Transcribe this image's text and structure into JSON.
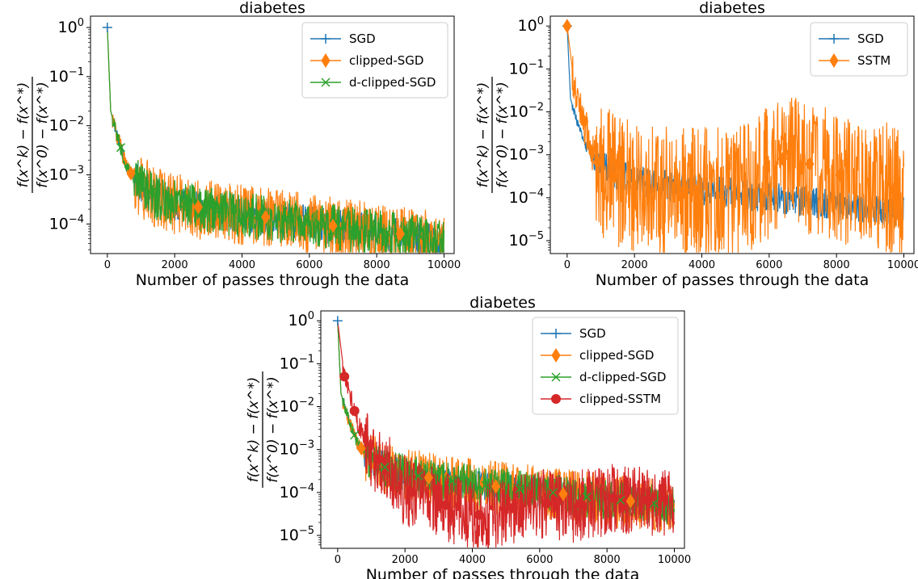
{
  "colors": {
    "SGD": "#1f77b4",
    "clipped-SGD": "#ff7f0e",
    "d-clipped-SGD": "#2ca02c",
    "SSTM": "#ff7f0e",
    "clipped-SSTM": "#d62728"
  },
  "common": {
    "xlabel": "Number of passes through the data",
    "ylabel_num": "f(x^k) − f(x^*)",
    "ylabel_den": "f(x^0) − f(x^*)",
    "xticks": [
      "0",
      "2000",
      "4000",
      "6000",
      "8000",
      "10000"
    ],
    "ytick_base": "10"
  },
  "chart_data": [
    {
      "type": "line",
      "title": "diabetes",
      "xlabel": "Number of passes through the data",
      "yscale": "log",
      "xlim": [
        -500,
        10300
      ],
      "ylim": [
        2.5e-05,
        1.7
      ],
      "yticks": [
        1,
        0.1,
        0.01,
        0.001,
        0.0001
      ],
      "xticks": [
        0,
        2000,
        4000,
        6000,
        8000,
        10000
      ],
      "legend": "top-right",
      "series": [
        {
          "name": "SGD",
          "color": "#1f77b4",
          "marker": "plus",
          "x": [
            0,
            100,
            300,
            600,
            1000,
            1500,
            2000,
            3000,
            4000,
            5000,
            6000,
            7000,
            8000,
            9000,
            10000
          ],
          "y": [
            1.0,
            0.02,
            0.006,
            0.0013,
            0.0006,
            0.00035,
            0.00028,
            0.0002,
            0.00016,
            0.00013,
            0.00011,
            8.5e-05,
            7e-05,
            6e-05,
            4e-05
          ],
          "markers_x": [
            0
          ]
        },
        {
          "name": "clipped-SGD",
          "color": "#ff7f0e",
          "marker": "diamond",
          "x": [
            0,
            100,
            300,
            600,
            1000,
            1500,
            2000,
            3000,
            4000,
            5000,
            6000,
            7000,
            8000,
            9000,
            10000
          ],
          "y": [
            1.0,
            0.02,
            0.006,
            0.0013,
            0.0006,
            0.00035,
            0.00028,
            0.0002,
            0.00016,
            0.00013,
            0.00011,
            8.5e-05,
            7e-05,
            6e-05,
            4e-05
          ],
          "markers_x": [
            700,
            2700,
            4700,
            6700,
            8700
          ]
        },
        {
          "name": "d-clipped-SGD",
          "color": "#2ca02c",
          "marker": "x",
          "x": [
            0,
            100,
            300,
            600,
            1000,
            1500,
            2000,
            3000,
            4000,
            5000,
            6000,
            7000,
            8000,
            9000,
            10000
          ],
          "y": [
            1.0,
            0.02,
            0.006,
            0.0013,
            0.0006,
            0.00035,
            0.00028,
            0.0002,
            0.00016,
            0.00013,
            0.00011,
            8.5e-05,
            7e-05,
            6e-05,
            4e-05
          ],
          "markers_x": [
            400,
            1300,
            2300,
            3300,
            4300,
            5300,
            6300,
            7300,
            8300,
            9300
          ]
        }
      ]
    },
    {
      "type": "line",
      "title": "diabetes",
      "xlabel": "Number of passes through the data",
      "yscale": "log",
      "xlim": [
        -500,
        10300
      ],
      "ylim": [
        5e-06,
        1.7
      ],
      "yticks": [
        1,
        0.1,
        0.01,
        0.001,
        0.0001,
        1e-05
      ],
      "xticks": [
        0,
        2000,
        4000,
        6000,
        8000,
        10000
      ],
      "legend": "top-right",
      "series": [
        {
          "name": "SGD",
          "color": "#1f77b4",
          "marker": "plus",
          "x": [
            0,
            100,
            300,
            600,
            1000,
            1500,
            2000,
            3000,
            4000,
            5000,
            6000,
            7000,
            8000,
            9000,
            10000
          ],
          "y": [
            1.0,
            0.02,
            0.006,
            0.0013,
            0.0006,
            0.00035,
            0.00028,
            0.0002,
            0.00016,
            0.00013,
            0.00011,
            8.5e-05,
            7e-05,
            6e-05,
            5e-05
          ],
          "markers_x": [
            0
          ]
        },
        {
          "name": "SSTM",
          "color": "#ff7f0e",
          "marker": "diamond",
          "x": [
            0,
            200,
            500,
            800,
            1200,
            1600,
            2000,
            2500,
            3000,
            3500,
            4000,
            4500,
            5000,
            5500,
            6000,
            6500,
            7000,
            7500,
            8000,
            8500,
            9000,
            9500,
            10000
          ],
          "y": [
            1.0,
            0.05,
            0.006,
            0.0008,
            0.0004,
            0.00025,
            0.0002,
            0.00018,
            0.00016,
            0.00015,
            0.00015,
            0.00015,
            0.00016,
            0.0002,
            0.0005,
            0.0009,
            0.0007,
            0.0005,
            0.00035,
            0.0003,
            0.0003,
            0.0002,
            0.0001
          ],
          "markers_x": [
            0,
            500,
            900,
            1400,
            3500,
            6400,
            7200,
            8100,
            9700
          ]
        }
      ]
    },
    {
      "type": "line",
      "title": "diabetes",
      "xlabel": "Number of passes through the data",
      "yscale": "log",
      "xlim": [
        -500,
        10300
      ],
      "ylim": [
        5e-06,
        1.7
      ],
      "yticks": [
        1,
        0.1,
        0.01,
        0.001,
        0.0001,
        1e-05
      ],
      "xticks": [
        0,
        2000,
        4000,
        6000,
        8000,
        10000
      ],
      "legend": "top-right",
      "series": [
        {
          "name": "SGD",
          "color": "#1f77b4",
          "marker": "plus",
          "x": [
            0,
            100,
            300,
            600,
            1000,
            1500,
            2000,
            3000,
            4000,
            5000,
            6000,
            7000,
            8000,
            9000,
            10000
          ],
          "y": [
            1.0,
            0.02,
            0.006,
            0.0013,
            0.0006,
            0.00035,
            0.00028,
            0.0002,
            0.00016,
            0.00013,
            0.00011,
            8.5e-05,
            7e-05,
            6e-05,
            5e-05
          ],
          "markers_x": [
            0
          ]
        },
        {
          "name": "clipped-SGD",
          "color": "#ff7f0e",
          "marker": "diamond",
          "x": [
            0,
            100,
            300,
            600,
            1000,
            1500,
            2000,
            3000,
            4000,
            5000,
            6000,
            7000,
            8000,
            9000,
            10000
          ],
          "y": [
            1.0,
            0.02,
            0.006,
            0.0013,
            0.0006,
            0.00035,
            0.00028,
            0.0002,
            0.00016,
            0.00013,
            0.00011,
            8.5e-05,
            7e-05,
            6e-05,
            5e-05
          ],
          "markers_x": [
            700,
            2700,
            4700,
            6700,
            8700
          ]
        },
        {
          "name": "d-clipped-SGD",
          "color": "#2ca02c",
          "marker": "x",
          "x": [
            0,
            100,
            300,
            600,
            1000,
            1500,
            2000,
            3000,
            4000,
            5000,
            6000,
            7000,
            8000,
            9000,
            10000
          ],
          "y": [
            1.0,
            0.02,
            0.006,
            0.0013,
            0.0006,
            0.00035,
            0.00028,
            0.0002,
            0.00016,
            0.00013,
            0.00011,
            8.5e-05,
            7e-05,
            6e-05,
            5e-05
          ],
          "markers_x": [
            500,
            1400,
            2400,
            3400,
            4400,
            5400,
            6400,
            7400,
            8400,
            9400
          ]
        },
        {
          "name": "clipped-SSTM",
          "color": "#d62728",
          "marker": "circle",
          "x": [
            0,
            200,
            500,
            800,
            1200,
            1600,
            2000,
            2500,
            3000,
            3500,
            4000,
            4500,
            5000,
            5500,
            6000,
            6500,
            7000,
            7500,
            8000,
            8500,
            9000,
            9500,
            10000
          ],
          "y": [
            1.0,
            0.05,
            0.008,
            0.0015,
            0.0006,
            0.0003,
            0.00012,
            8e-05,
            6e-05,
            4e-05,
            3e-05,
            3e-05,
            4e-05,
            5e-05,
            6e-05,
            5e-05,
            5e-05,
            6e-05,
            7e-05,
            8e-05,
            7e-05,
            6e-05,
            5e-05
          ],
          "markers_x": [
            200,
            500,
            1200,
            2200,
            3200,
            4200,
            5200,
            6200,
            7200,
            8200,
            9200
          ]
        }
      ]
    }
  ]
}
